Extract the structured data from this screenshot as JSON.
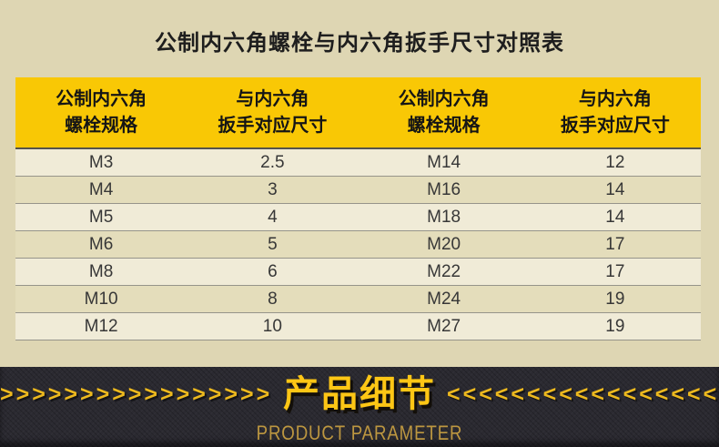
{
  "page": {
    "title": "公制内六角螺栓与内六角扳手尺寸对照表"
  },
  "table": {
    "headers": [
      {
        "line1": "公制内六角",
        "line2": "螺栓规格"
      },
      {
        "line1": "与内六角",
        "line2": "扳手对应尺寸"
      },
      {
        "line1": "公制内六角",
        "line2": "螺栓规格"
      },
      {
        "line1": "与内六角",
        "line2": "扳手对应尺寸"
      }
    ],
    "rows": [
      [
        "M3",
        "2.5",
        "M14",
        "12"
      ],
      [
        "M4",
        "3",
        "M16",
        "14"
      ],
      [
        "M5",
        "4",
        "M18",
        "14"
      ],
      [
        "M6",
        "5",
        "M20",
        "17"
      ],
      [
        "M8",
        "6",
        "M22",
        "17"
      ],
      [
        "M10",
        "8",
        "M24",
        "19"
      ],
      [
        "M12",
        "10",
        "M27",
        "19"
      ]
    ]
  },
  "banner": {
    "title": "产品细节",
    "subtitle": "PRODUCT PARAMETER",
    "left_chevrons": ">>>>>>>>>>>>>>>>>>>>>>",
    "right_chevrons": "<<<<<<<<<<<<<<<<<<<<<<"
  },
  "colors": {
    "page_background": "#ded6b3",
    "header_yellow": "#f9c805",
    "row_dark": "#e4ddbb",
    "row_light": "#f0ebd7",
    "row_divider": "#96948a",
    "banner_background": "#2b2a31",
    "banner_title_yellow": "#fdc615",
    "banner_subtitle_gold": "#bd9740",
    "chevron_yellow": "#edb91e"
  }
}
